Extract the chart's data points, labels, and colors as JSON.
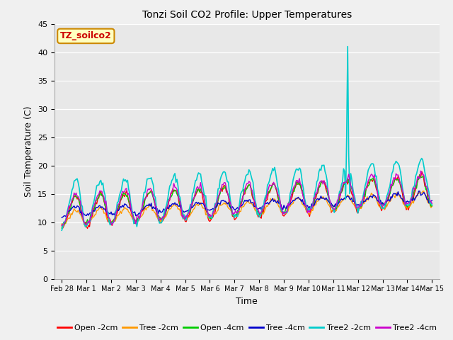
{
  "title": "Tonzi Soil CO2 Profile: Upper Temperatures",
  "xlabel": "Time",
  "ylabel": "Soil Temperature (C)",
  "ylim": [
    0,
    45
  ],
  "yticks": [
    0,
    5,
    10,
    15,
    20,
    25,
    30,
    35,
    40,
    45
  ],
  "fig_bg": "#f0f0f0",
  "ax_bg": "#e8e8e8",
  "watermark": "TZ_soilco2",
  "xtick_labels": [
    "Feb 28",
    "Mar 1",
    "Mar 2",
    "Mar 3",
    "Mar 4",
    "Mar 5",
    "Mar 6",
    "Mar 7",
    "Mar 8",
    "Mar 9",
    "Mar 10",
    "Mar 11",
    "Mar 12",
    "Mar 13",
    "Mar 14",
    "Mar 15"
  ],
  "xtick_positions": [
    0,
    1,
    2,
    3,
    4,
    5,
    6,
    7,
    8,
    9,
    10,
    11,
    12,
    13,
    14,
    15
  ],
  "series_colors": [
    "#ff0000",
    "#ff9900",
    "#00cc00",
    "#0000cc",
    "#00cccc",
    "#cc00cc"
  ],
  "series_labels": [
    "Open -2cm",
    "Tree -2cm",
    "Open -4cm",
    "Tree -4cm",
    "Tree2 -2cm",
    "Tree2 -4cm"
  ],
  "series_lw": [
    1.0,
    1.0,
    1.0,
    1.0,
    1.2,
    1.0
  ]
}
